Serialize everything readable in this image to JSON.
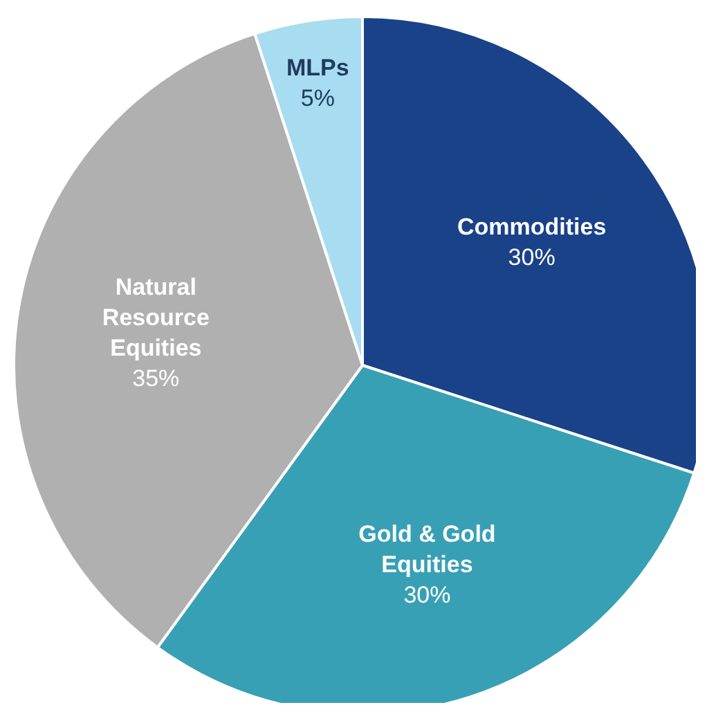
{
  "chart_data": {
    "type": "pie",
    "categories": [
      "Commodities",
      "Gold & Gold Equities",
      "Natural Resource Equities",
      "MLPs"
    ],
    "values": [
      30,
      30,
      35,
      5
    ],
    "colors": [
      "#1a4289",
      "#37a0b5",
      "#b0b0b0",
      "#a8dcf0"
    ],
    "value_labels": [
      "30%",
      "30%",
      "35%",
      "5%"
    ]
  }
}
